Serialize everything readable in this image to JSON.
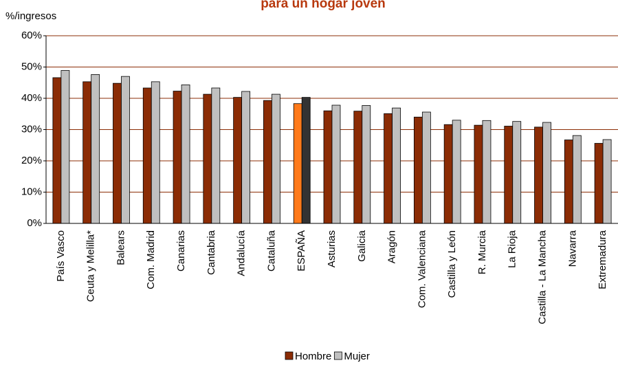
{
  "chart_data": {
    "type": "bar",
    "title": "para un hogar joven",
    "y_label": "%/ingresos",
    "categories": [
      "País Vasco",
      "Ceuta y Melilla*",
      "Balears",
      "Com. Madrid",
      "Canarias",
      "Cantabria",
      "Andalucía",
      "Cataluña",
      "ESPAÑA",
      "Asturias",
      "Galicia",
      "Aragón",
      "Com. Valenciana",
      "Castilla y León",
      "R. Murcia",
      "La Rioja",
      "Castilla - La Mancha",
      "Navarra",
      "Extremadura"
    ],
    "series": [
      {
        "name": "Hombre",
        "color": "#8b2c05",
        "point_colors": [
          "#8b2c05",
          "#8b2c05",
          "#8b2c05",
          "#8b2c05",
          "#8b2c05",
          "#8b2c05",
          "#8b2c05",
          "#8b2c05",
          "#ff7a1a",
          "#8b2c05",
          "#8b2c05",
          "#8b2c05",
          "#8b2c05",
          "#8b2c05",
          "#8b2c05",
          "#8b2c05",
          "#8b2c05",
          "#8b2c05",
          "#8b2c05"
        ],
        "values": [
          46.6,
          45.3,
          44.8,
          43.3,
          42.3,
          41.3,
          40.3,
          39.3,
          38.3,
          36.0,
          35.9,
          35.1,
          34.0,
          31.6,
          31.4,
          31.1,
          30.8,
          26.7,
          25.6
        ]
      },
      {
        "name": "Mujer",
        "color": "#c0c0c0",
        "point_colors": [
          "#c0c0c0",
          "#c0c0c0",
          "#c0c0c0",
          "#c0c0c0",
          "#c0c0c0",
          "#c0c0c0",
          "#c0c0c0",
          "#c0c0c0",
          "#333333",
          "#c0c0c0",
          "#c0c0c0",
          "#c0c0c0",
          "#c0c0c0",
          "#c0c0c0",
          "#c0c0c0",
          "#c0c0c0",
          "#c0c0c0",
          "#c0c0c0",
          "#c0c0c0"
        ],
        "values": [
          48.9,
          47.6,
          47.0,
          45.3,
          44.3,
          43.3,
          42.2,
          41.3,
          40.3,
          37.8,
          37.7,
          36.9,
          35.6,
          33.0,
          32.9,
          32.6,
          32.3,
          28.1,
          26.8
        ]
      }
    ],
    "ylim": [
      0,
      60
    ],
    "yticks": [
      {
        "value": 0,
        "label": "0%"
      },
      {
        "value": 10,
        "label": "10%"
      },
      {
        "value": 20,
        "label": "20%"
      },
      {
        "value": 30,
        "label": "30%"
      },
      {
        "value": 40,
        "label": "40%"
      },
      {
        "value": 50,
        "label": "50%"
      },
      {
        "value": 60,
        "label": "60%"
      }
    ],
    "grid": true,
    "grid_color": "#8b2c05",
    "legend": "bottom"
  }
}
